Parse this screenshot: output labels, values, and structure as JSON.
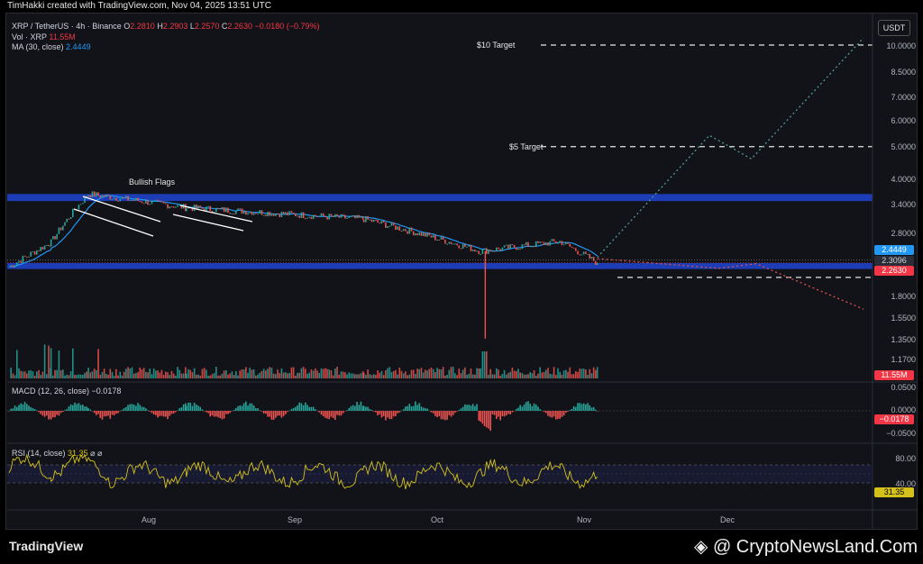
{
  "header": {
    "credit": "TimHakki created with TradingView.com, Nov 04, 2025 13:51 UTC"
  },
  "legend": {
    "symbol": "XRP / TetherUS · 4h · Binance",
    "o_label": "O",
    "o_value": "2.2810",
    "h_label": "H",
    "h_value": "2.2903",
    "l_label": "L",
    "l_value": "2.2570",
    "c_label": "C",
    "c_value": "2.2630",
    "change": "−0.0180 (−0.79%)",
    "vol_label": "Vol · XRP",
    "vol_value": "11.55M",
    "ma_label": "MA (30, close)",
    "ma_value": "2.4449",
    "macd_label": "MACD (12, 26, close)",
    "macd_value": "−0.0178",
    "rsi_label": "RSI (14, close)",
    "rsi_value": "31.35",
    "rsi_extra": "⌀ ⌀"
  },
  "currency_button": "USDT",
  "annotations": {
    "bullish_flags": "Bullish Flags",
    "target_10": "$10 Target",
    "target_5": "$5 Target"
  },
  "price_axis": [
    "10.0000",
    "8.5000",
    "7.0000",
    "6.0000",
    "5.0000",
    "4.0000",
    "3.4000",
    "2.8000",
    "1.8000",
    "1.5500",
    "1.3500",
    "1.1700"
  ],
  "price_tags": {
    "ma": "2.4449",
    "mid": "2.3096",
    "last": "2.2630",
    "vol": "11.55M"
  },
  "macd_axis": [
    "0.0500",
    "0.0000",
    "−0.0500"
  ],
  "macd_tag": "−0.0178",
  "rsi_axis": [
    "80.00",
    "40.00"
  ],
  "rsi_tag": "31.35",
  "months": [
    "Aug",
    "Sep",
    "Oct",
    "Nov",
    "Dec"
  ],
  "footer": {
    "brand": "TradingView",
    "watermark": "◈ @ CryptoNewsLand.Com"
  },
  "colors": {
    "support_zone": "#1e3fbf",
    "ma_line": "#2196f3",
    "up": "#26a69a",
    "down": "#ef5350",
    "rsi": "#d4c21a",
    "projection_up": "#4e9d8f",
    "projection_down": "#e05050"
  },
  "chart_data": {
    "type": "candlestick",
    "interval": "4h",
    "y_scale": "log",
    "zones": [
      {
        "name": "resistance",
        "from": 3.45,
        "to": 3.62
      },
      {
        "name": "support",
        "from": 2.17,
        "to": 2.26
      }
    ],
    "levels": [
      {
        "label": "$10 Target",
        "value": 10.0
      },
      {
        "label": "$5 Target",
        "value": 5.0
      },
      {
        "value": 2.05
      }
    ],
    "key_points": [
      {
        "t": "Jul 18",
        "close": 3.62
      },
      {
        "t": "Aug 08",
        "close": 3.3
      },
      {
        "t": "Sep 15",
        "close": 3.05
      },
      {
        "t": "Oct 10",
        "close": 2.45
      },
      {
        "t": "Oct 11",
        "low": 1.35
      },
      {
        "t": "Oct 27",
        "close": 2.62
      },
      {
        "t": "Nov 04",
        "close": 2.263
      }
    ],
    "ma30_last": 2.4449,
    "volume_last": "11.55M",
    "macd_last": -0.0178,
    "rsi_last": 31.35,
    "rsi_levels": [
      80,
      40
    ],
    "projections": [
      {
        "name": "bullish",
        "points": [
          [
            "Nov 04",
            2.35
          ],
          [
            "Nov 28",
            5.4
          ],
          [
            "Dec 07",
            4.6
          ],
          [
            "Dec 31",
            10.5
          ]
        ]
      },
      {
        "name": "bearish",
        "points": [
          [
            "Nov 04",
            2.33
          ],
          [
            "Nov 30",
            2.18
          ],
          [
            "Dec 08",
            2.25
          ],
          [
            "Dec 31",
            1.65
          ]
        ]
      }
    ]
  }
}
